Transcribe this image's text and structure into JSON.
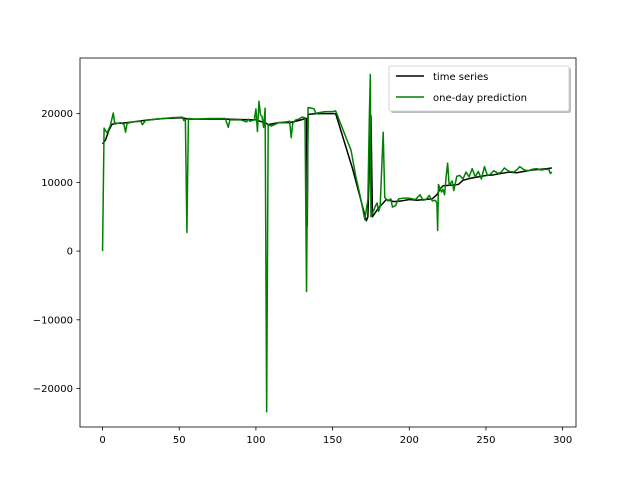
{
  "chart_data": {
    "type": "line",
    "title": "",
    "xlabel": "",
    "ylabel": "",
    "xlim": [
      -14.7,
      308.7
    ],
    "ylim": [
      -25600,
      28100
    ],
    "x_ticks": [
      0,
      50,
      100,
      150,
      200,
      250,
      300
    ],
    "y_ticks": [
      -20000,
      -10000,
      0,
      10000,
      20000
    ],
    "grid": false,
    "legend": {
      "placement": "top-right"
    },
    "series": [
      {
        "name": "time series",
        "color": "#000000",
        "points": [
          [
            0,
            15600
          ],
          [
            2,
            16200
          ],
          [
            4,
            17500
          ],
          [
            6,
            18400
          ],
          [
            8,
            18600
          ],
          [
            12,
            18600
          ],
          [
            20,
            18800
          ],
          [
            30,
            19100
          ],
          [
            40,
            19300
          ],
          [
            52,
            19400
          ],
          [
            56,
            19200
          ],
          [
            65,
            19200
          ],
          [
            80,
            19200
          ],
          [
            100,
            19100
          ],
          [
            104,
            18800
          ],
          [
            106,
            18700
          ],
          [
            108,
            18400
          ],
          [
            110,
            18500
          ],
          [
            115,
            18700
          ],
          [
            122,
            18700
          ],
          [
            128,
            19000
          ],
          [
            131,
            19200
          ],
          [
            133,
            19300
          ],
          [
            133.5,
            3700
          ],
          [
            134,
            19900
          ],
          [
            140,
            20000
          ],
          [
            148,
            20000
          ],
          [
            152,
            20000
          ],
          [
            163,
            12000
          ],
          [
            172,
            4400
          ],
          [
            173,
            5000
          ],
          [
            175,
            19700
          ],
          [
            176,
            5000
          ],
          [
            180,
            6300
          ],
          [
            183,
            7000
          ],
          [
            185,
            7500
          ],
          [
            190,
            7200
          ],
          [
            195,
            7300
          ],
          [
            200,
            7500
          ],
          [
            205,
            7400
          ],
          [
            210,
            7500
          ],
          [
            215,
            7600
          ],
          [
            218,
            8200
          ],
          [
            220,
            9000
          ],
          [
            222,
            9500
          ],
          [
            228,
            9600
          ],
          [
            232,
            9700
          ],
          [
            235,
            10300
          ],
          [
            240,
            10600
          ],
          [
            245,
            10800
          ],
          [
            250,
            11000
          ],
          [
            255,
            11100
          ],
          [
            260,
            11300
          ],
          [
            265,
            11500
          ],
          [
            270,
            11400
          ],
          [
            275,
            11600
          ],
          [
            280,
            11800
          ],
          [
            285,
            11900
          ],
          [
            290,
            12000
          ],
          [
            293,
            12100
          ]
        ]
      },
      {
        "name": "one-day prediction",
        "color": "#008000",
        "points": [
          [
            0,
            0
          ],
          [
            1,
            17900
          ],
          [
            2,
            17500
          ],
          [
            3,
            17200
          ],
          [
            5,
            18200
          ],
          [
            7,
            20100
          ],
          [
            8,
            18500
          ],
          [
            12,
            18700
          ],
          [
            14,
            18400
          ],
          [
            15,
            17300
          ],
          [
            16,
            18600
          ],
          [
            20,
            18800
          ],
          [
            25,
            18900
          ],
          [
            26,
            18400
          ],
          [
            28,
            19000
          ],
          [
            35,
            19200
          ],
          [
            45,
            19400
          ],
          [
            52,
            19500
          ],
          [
            53,
            19000
          ],
          [
            54,
            19200
          ],
          [
            55,
            2700
          ],
          [
            56,
            19300
          ],
          [
            60,
            19200
          ],
          [
            70,
            19300
          ],
          [
            80,
            19300
          ],
          [
            82,
            18000
          ],
          [
            83,
            19100
          ],
          [
            90,
            19100
          ],
          [
            94,
            18800
          ],
          [
            95,
            19200
          ],
          [
            96,
            18900
          ],
          [
            99,
            19100
          ],
          [
            100,
            20700
          ],
          [
            101,
            17400
          ],
          [
            102,
            21800
          ],
          [
            103,
            19800
          ],
          [
            104,
            19600
          ],
          [
            105,
            18000
          ],
          [
            106,
            20800
          ],
          [
            107,
            -23400
          ],
          [
            108,
            18400
          ],
          [
            110,
            18200
          ],
          [
            115,
            18700
          ],
          [
            120,
            18800
          ],
          [
            122,
            18900
          ],
          [
            123,
            16500
          ],
          [
            124,
            18600
          ],
          [
            126,
            19100
          ],
          [
            128,
            19200
          ],
          [
            130,
            19500
          ],
          [
            132,
            19400
          ],
          [
            133,
            -5900
          ],
          [
            134,
            20900
          ],
          [
            136,
            20800
          ],
          [
            138,
            20700
          ],
          [
            139,
            20000
          ],
          [
            140,
            20100
          ],
          [
            145,
            20300
          ],
          [
            150,
            20300
          ],
          [
            152,
            20400
          ],
          [
            160,
            15800
          ],
          [
            162,
            14700
          ],
          [
            165,
            11000
          ],
          [
            168,
            8000
          ],
          [
            171,
            4600
          ],
          [
            173,
            7500
          ],
          [
            174,
            20000
          ],
          [
            174.6,
            25700
          ],
          [
            175,
            5000
          ],
          [
            176,
            5500
          ],
          [
            178,
            6600
          ],
          [
            179,
            7000
          ],
          [
            180,
            5800
          ],
          [
            181,
            6500
          ],
          [
            183,
            17300
          ],
          [
            184,
            7800
          ],
          [
            186,
            7300
          ],
          [
            188,
            7600
          ],
          [
            189,
            6400
          ],
          [
            191,
            6600
          ],
          [
            193,
            7600
          ],
          [
            196,
            7700
          ],
          [
            200,
            7700
          ],
          [
            204,
            7500
          ],
          [
            207,
            8200
          ],
          [
            209,
            7400
          ],
          [
            211,
            7500
          ],
          [
            213,
            8100
          ],
          [
            215,
            7300
          ],
          [
            217,
            7400
          ],
          [
            218,
            7000
          ],
          [
            218.5,
            3000
          ],
          [
            219,
            9700
          ],
          [
            221,
            8600
          ],
          [
            222,
            9000
          ],
          [
            223,
            8200
          ],
          [
            224,
            10800
          ],
          [
            225,
            12800
          ],
          [
            226,
            9600
          ],
          [
            228,
            10200
          ],
          [
            229,
            8800
          ],
          [
            231,
            10900
          ],
          [
            233,
            11000
          ],
          [
            235,
            10500
          ],
          [
            237,
            11500
          ],
          [
            239,
            10800
          ],
          [
            241,
            12000
          ],
          [
            243,
            10800
          ],
          [
            245,
            11600
          ],
          [
            247,
            10500
          ],
          [
            249,
            12300
          ],
          [
            251,
            11000
          ],
          [
            253,
            11200
          ],
          [
            255,
            11700
          ],
          [
            258,
            11300
          ],
          [
            260,
            11500
          ],
          [
            262,
            12100
          ],
          [
            265,
            11600
          ],
          [
            268,
            11500
          ],
          [
            270,
            11800
          ],
          [
            272,
            12300
          ],
          [
            275,
            11800
          ],
          [
            278,
            11700
          ],
          [
            280,
            11900
          ],
          [
            283,
            12000
          ],
          [
            286,
            11800
          ],
          [
            289,
            11900
          ],
          [
            291,
            11900
          ],
          [
            292,
            11300
          ],
          [
            293,
            11500
          ]
        ]
      }
    ]
  }
}
